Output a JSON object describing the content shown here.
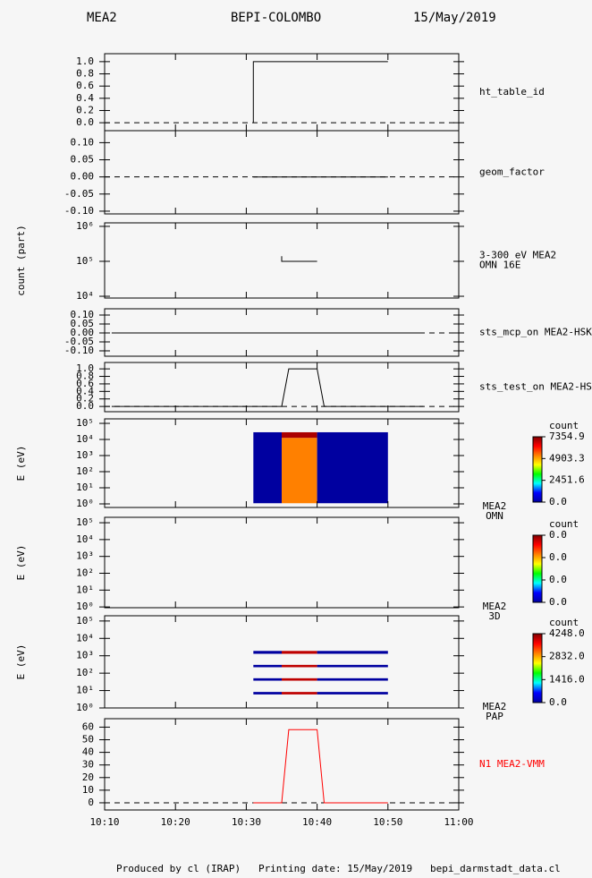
{
  "header": {
    "instrument": "MEA2",
    "mission": "BEPI-COLOMBO",
    "date": "15/May/2019"
  },
  "footer": "Produced by cl (IRAP)   Printing date: 15/May/2019   bepi_darmstadt_data.cl",
  "chart_data": [
    {
      "type": "line",
      "label": [
        "ht_table_id"
      ],
      "ylim": [
        -0.13,
        1.13
      ],
      "zero_line": true,
      "yticks": [
        {
          "value": 0,
          "label": "0.0"
        },
        0.2,
        0.4,
        0.6,
        0.8,
        {
          "value": 1,
          "label": "1.0"
        }
      ],
      "x": [
        "10:31",
        "10:31",
        "10:50"
      ],
      "series": [
        {
          "color": "#000000",
          "values": [
            0,
            1,
            1
          ]
        }
      ]
    },
    {
      "type": "line",
      "label": [
        "geom_factor"
      ],
      "ylim": [
        -0.108,
        0.135
      ],
      "zero_line": true,
      "yticks": [
        {
          "value": -0.1,
          "label": "-0.10"
        },
        {
          "value": -0.05,
          "label": "-0.05"
        },
        {
          "value": 0,
          "label": "0.00"
        },
        {
          "value": 0.05,
          "label": "0.05"
        },
        {
          "value": 0.1,
          "label": "0.10"
        }
      ],
      "x": [
        "10:31",
        "10:50"
      ],
      "series": [
        {
          "color": "#000000",
          "values": [
            0,
            0
          ]
        }
      ]
    },
    {
      "type": "line",
      "label": [
        "3-300 eV MEA2",
        "OMN 16E"
      ],
      "ylabel": "count (part)",
      "ylog": true,
      "ylim": [
        8900,
        1260000
      ],
      "yticks": [
        {
          "value": 10000,
          "label": "10⁴"
        },
        {
          "value": 100000,
          "label": "10⁵"
        },
        {
          "value": 1000000,
          "label": "10⁶"
        }
      ],
      "x": [
        "10:35",
        "10:35",
        "10:40"
      ],
      "series": [
        {
          "color": "#000000",
          "values": [
            140000,
            100000,
            100000
          ]
        }
      ]
    },
    {
      "type": "line",
      "label": [
        "sts_mcp_on MEA2-HSK"
      ],
      "ylim": [
        -0.13,
        0.135
      ],
      "zero_line": true,
      "yticks": [
        {
          "value": -0.1,
          "label": "-0.10"
        },
        {
          "value": -0.05,
          "label": "-0.05"
        },
        {
          "value": 0,
          "label": "0.00"
        },
        {
          "value": 0.05,
          "label": "0.05"
        },
        {
          "value": 0.1,
          "label": "0.10"
        }
      ],
      "x": [
        "10:11",
        "10:55"
      ],
      "series": [
        {
          "color": "#000000",
          "values": [
            0,
            0
          ]
        }
      ]
    },
    {
      "type": "line",
      "label": [
        "sts_test_on MEA2-HSK"
      ],
      "ylim": [
        -0.14,
        1.17
      ],
      "zero_line": true,
      "yticks": [
        {
          "value": 0,
          "label": "0.0"
        },
        0.2,
        0.4,
        0.6,
        0.8,
        {
          "value": 1,
          "label": "1.0"
        }
      ],
      "x": [
        "10:11",
        "10:35",
        "10:36",
        "10:40",
        "10:41",
        "10:55"
      ],
      "series": [
        {
          "color": "#000000",
          "values": [
            0,
            0,
            1,
            1,
            0,
            0
          ]
        }
      ]
    },
    {
      "type": "spectrogram",
      "label": [
        "MEA2",
        "OMN"
      ],
      "ylabel": "E (eV)",
      "ylog": true,
      "ylim": [
        0.6,
        190000
      ],
      "yticks": [
        {
          "value": 1,
          "label": "10⁰"
        },
        {
          "value": 10,
          "label": "10¹"
        },
        {
          "value": 100,
          "label": "10²"
        },
        {
          "value": 1000,
          "label": "10³"
        },
        {
          "value": 10000,
          "label": "10⁴"
        },
        {
          "value": 100000,
          "label": "10⁵"
        }
      ],
      "colormap": [
        "#0000a0",
        "#0000ff",
        "#00ffff",
        "#00ff00",
        "#ffff00",
        "#ff8000",
        "#ff0000",
        "#800000"
      ],
      "colorbar": {
        "title": "count",
        "clim": [
          0,
          7354.9
        ],
        "ticks": [
          {
            "value": 0,
            "label": "0.0"
          },
          2451.6,
          4903.3,
          7354.9
        ]
      },
      "cells": [
        {
          "t": [
            "10:31",
            "10:35"
          ],
          "e": [
            1.1,
            28000
          ],
          "value": 0
        },
        {
          "t": [
            "10:35",
            "10:40"
          ],
          "e": [
            1.1,
            12600
          ],
          "value": 5254
        },
        {
          "t": [
            "10:35",
            "10:40"
          ],
          "e": [
            12600,
            28000
          ],
          "value": 7000
        },
        {
          "t": [
            "10:40",
            "10:50"
          ],
          "e": [
            1.1,
            28000
          ],
          "value": 0
        }
      ]
    },
    {
      "type": "spectrogram",
      "label": [
        "MEA2",
        "3D"
      ],
      "ylabel": "E (eV)",
      "ylog": true,
      "ylim": [
        0.9,
        210000
      ],
      "yticks": [
        {
          "value": 1,
          "label": "10⁰"
        },
        {
          "value": 10,
          "label": "10¹"
        },
        {
          "value": 100,
          "label": "10²"
        },
        {
          "value": 1000,
          "label": "10³"
        },
        {
          "value": 10000,
          "label": "10⁴"
        },
        {
          "value": 100000,
          "label": "10⁵"
        }
      ],
      "colormap": [
        "#0000a0",
        "#0000ff",
        "#00ffff",
        "#00ff00",
        "#ffff00",
        "#ff8000",
        "#ff0000",
        "#800000"
      ],
      "colorbar": {
        "title": "count",
        "clim": [
          0,
          0.03
        ],
        "ticks": [
          {
            "value": 0,
            "label": "0.0"
          },
          {
            "value": 0.01,
            "label": "0.0"
          },
          {
            "value": 0.02,
            "label": "0.0"
          },
          {
            "value": 0.03,
            "label": "0.0"
          }
        ]
      },
      "cells": []
    },
    {
      "type": "spectrogram",
      "label": [
        "MEA2",
        "PAP"
      ],
      "ylabel": "E (eV)",
      "ylog": true,
      "ylim": [
        1,
        200000
      ],
      "yticks": [
        {
          "value": 1,
          "label": "10⁰"
        },
        {
          "value": 10,
          "label": "10¹"
        },
        {
          "value": 100,
          "label": "10²"
        },
        {
          "value": 1000,
          "label": "10³"
        },
        {
          "value": 10000,
          "label": "10⁴"
        },
        {
          "value": 100000,
          "label": "10⁵"
        }
      ],
      "colormap": [
        "#0000a0",
        "#0000ff",
        "#00ffff",
        "#00ff00",
        "#ffff00",
        "#ff8000",
        "#ff0000",
        "#800000"
      ],
      "colorbar": {
        "title": "count",
        "clim": [
          0,
          4248.0
        ],
        "ticks": [
          {
            "value": 0,
            "label": "0.0"
          },
          {
            "value": 1416,
            "label": "1416.0"
          },
          {
            "value": 2832,
            "label": "2832.0"
          },
          {
            "value": 4248,
            "label": "4248.0"
          }
        ]
      },
      "cells": [
        {
          "t": [
            "10:31",
            "10:35"
          ],
          "e": [
            1300,
            1900
          ],
          "value": 0
        },
        {
          "t": [
            "10:35",
            "10:40"
          ],
          "e": [
            1300,
            1900
          ],
          "value": 3950
        },
        {
          "t": [
            "10:40",
            "10:50"
          ],
          "e": [
            1300,
            1900
          ],
          "value": 0
        },
        {
          "t": [
            "10:31",
            "10:35"
          ],
          "e": [
            220,
            300
          ],
          "value": 0
        },
        {
          "t": [
            "10:35",
            "10:40"
          ],
          "e": [
            220,
            300
          ],
          "value": 3950
        },
        {
          "t": [
            "10:40",
            "10:50"
          ],
          "e": [
            220,
            300
          ],
          "value": 0
        },
        {
          "t": [
            "10:31",
            "10:35"
          ],
          "e": [
            37,
            51
          ],
          "value": 0
        },
        {
          "t": [
            "10:35",
            "10:40"
          ],
          "e": [
            37,
            51
          ],
          "value": 3950
        },
        {
          "t": [
            "10:40",
            "10:50"
          ],
          "e": [
            37,
            51
          ],
          "value": 0
        },
        {
          "t": [
            "10:31",
            "10:35"
          ],
          "e": [
            6,
            8.3
          ],
          "value": 0
        },
        {
          "t": [
            "10:35",
            "10:40"
          ],
          "e": [
            6,
            8.3
          ],
          "value": 3950
        },
        {
          "t": [
            "10:40",
            "10:50"
          ],
          "e": [
            6,
            8.3
          ],
          "value": 0
        }
      ]
    },
    {
      "type": "line",
      "label": [
        "N1 MEA2-VMM"
      ],
      "label_color": "#ff0000",
      "ylim": [
        -5.7,
        66.7
      ],
      "zero_line": true,
      "yticks": [
        0,
        10,
        20,
        30,
        40,
        50,
        60
      ],
      "xlim": [
        "10:10",
        "11:00"
      ],
      "xticks": [
        "10:10",
        "10:20",
        "10:30",
        "10:40",
        "10:50",
        "11:00"
      ],
      "x": [
        "10:31",
        "10:35",
        "10:36",
        "10:40",
        "10:41",
        "10:50"
      ],
      "series": [
        {
          "color": "#ff0000",
          "values": [
            0,
            0,
            58,
            58,
            0,
            0
          ]
        }
      ]
    }
  ]
}
